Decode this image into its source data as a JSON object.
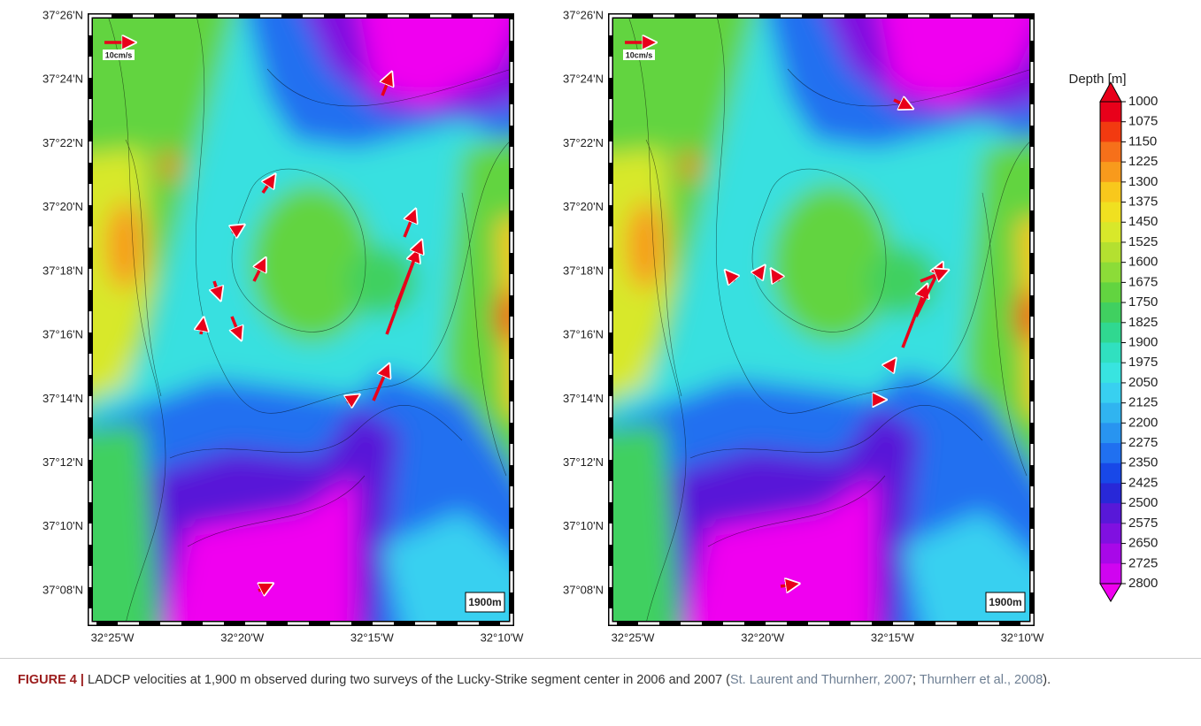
{
  "panels": [
    {
      "lat_labels": [
        "37°26'N",
        "37°24'N",
        "37°22'N",
        "37°20'N",
        "37°18'N",
        "37°16'N",
        "37°14'N",
        "37°12'N",
        "37°10'N",
        "37°08'N"
      ],
      "lon_labels": [
        "32°25'W",
        "32°20'W",
        "32°15'W",
        "32°10'W"
      ],
      "scale_label": "10cm/s",
      "depth_label": "1900m"
    },
    {
      "lat_labels": [
        "37°26'N",
        "37°24'N",
        "37°22'N",
        "37°20'N",
        "37°18'N",
        "37°16'N",
        "37°14'N",
        "37°12'N",
        "37°10'N",
        "37°08'N"
      ],
      "lon_labels": [
        "32°25'W",
        "32°20'W",
        "32°15'W",
        "32°10'W"
      ],
      "scale_label": "10cm/s",
      "depth_label": "1900m"
    }
  ],
  "colorbar": {
    "title": "Depth [m]",
    "ticks": [
      1000,
      1075,
      1150,
      1225,
      1300,
      1375,
      1450,
      1525,
      1600,
      1675,
      1750,
      1825,
      1900,
      1975,
      2050,
      2125,
      2200,
      2275,
      2350,
      2425,
      2500,
      2575,
      2650,
      2725,
      2800
    ],
    "colors": [
      "#e8001a",
      "#f23a10",
      "#f6701a",
      "#f89a1c",
      "#f8c81c",
      "#f0e020",
      "#d8e82a",
      "#b4e030",
      "#8cdc38",
      "#62d440",
      "#40d060",
      "#30d890",
      "#30e0c0",
      "#38e4e0",
      "#38d0f0",
      "#30b4f0",
      "#2894f0",
      "#2070f0",
      "#1848e8",
      "#2828d8",
      "#5818d8",
      "#8010e0",
      "#a808e8",
      "#d004f0",
      "#f000f0"
    ]
  },
  "caption": {
    "label": "FIGURE 4 |",
    "text": "LADCP velocities at 1,900 m observed during two surveys of the Lucky-Strike segment center in 2006 and 2007 (",
    "refs": [
      "St. Laurent and Thurnherr, 2007",
      "Thurnherr et al., 2008"
    ],
    "close": ")."
  }
}
